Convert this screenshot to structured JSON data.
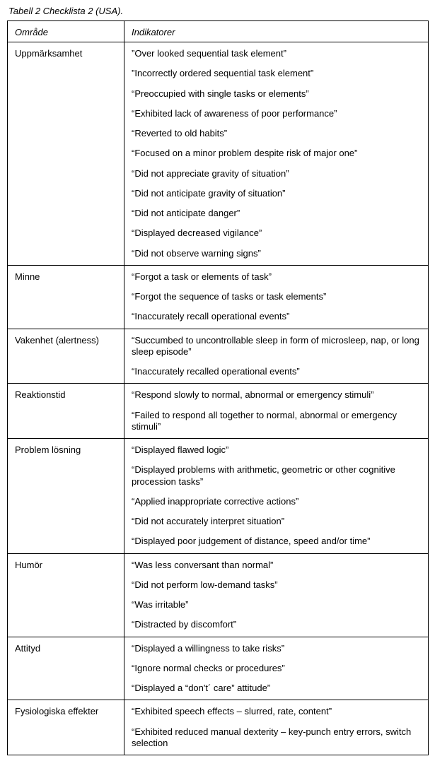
{
  "caption": "Tabell 2  Checklista 2 (USA).",
  "headers": {
    "col1": "Område",
    "col2": "Indikatorer"
  },
  "rows": [
    {
      "area": "Uppmärksamhet",
      "indicators": [
        "”Over looked sequential task element”",
        "”Incorrectly ordered sequential task element”",
        "“Preoccupied with single tasks or elements”",
        "“Exhibited lack of awareness of poor performance”",
        "“Reverted to old habits”",
        "“Focused on a minor problem despite risk of major one”",
        "“Did not appreciate gravity of situation”",
        "“Did not anticipate gravity of situation”",
        "“Did not anticipate danger”",
        "“Displayed decreased vigilance”",
        "“Did not observe warning signs”"
      ]
    },
    {
      "area": "Minne",
      "indicators": [
        "“Forgot a task or elements of task”",
        "“Forgot the sequence of tasks or task elements”",
        "“Inaccurately recall operational events”"
      ]
    },
    {
      "area": "Vakenhet (alertness)",
      "indicators": [
        "“Succumbed to uncontrollable sleep in form of microsleep, nap, or long sleep episode”",
        "“Inaccurately recalled operational events”"
      ]
    },
    {
      "area": "Reaktionstid",
      "indicators": [
        "“Respond slowly to normal, abnormal or emergency stimuli”",
        "“Failed to respond all together to normal, abnormal or emergency stimuli”"
      ]
    },
    {
      "area": "Problem lösning",
      "indicators": [
        "“Displayed flawed logic”",
        "“Displayed problems with arithmetic, geometric or other cognitive procession tasks”",
        "“Applied inappropriate corrective actions”",
        "“Did not accurately interpret situation”",
        "“Displayed poor judgement of distance, speed and/or time”"
      ]
    },
    {
      "area": "Humör",
      "indicators": [
        "“Was less conversant than normal”",
        "“Did not perform low-demand tasks”",
        "“Was irritable”",
        "“Distracted by discomfort”"
      ]
    },
    {
      "area": "Attityd",
      "indicators": [
        "“Displayed a willingness to take risks”",
        "“Ignore normal checks or procedures”",
        "“Displayed a “don't´ care” attitude”"
      ]
    },
    {
      "area": "Fysiologiska effekter",
      "indicators": [
        "“Exhibited speech effects – slurred, rate, content”",
        "“Exhibited reduced manual dexterity – key-punch entry errors, switch selection"
      ]
    }
  ]
}
